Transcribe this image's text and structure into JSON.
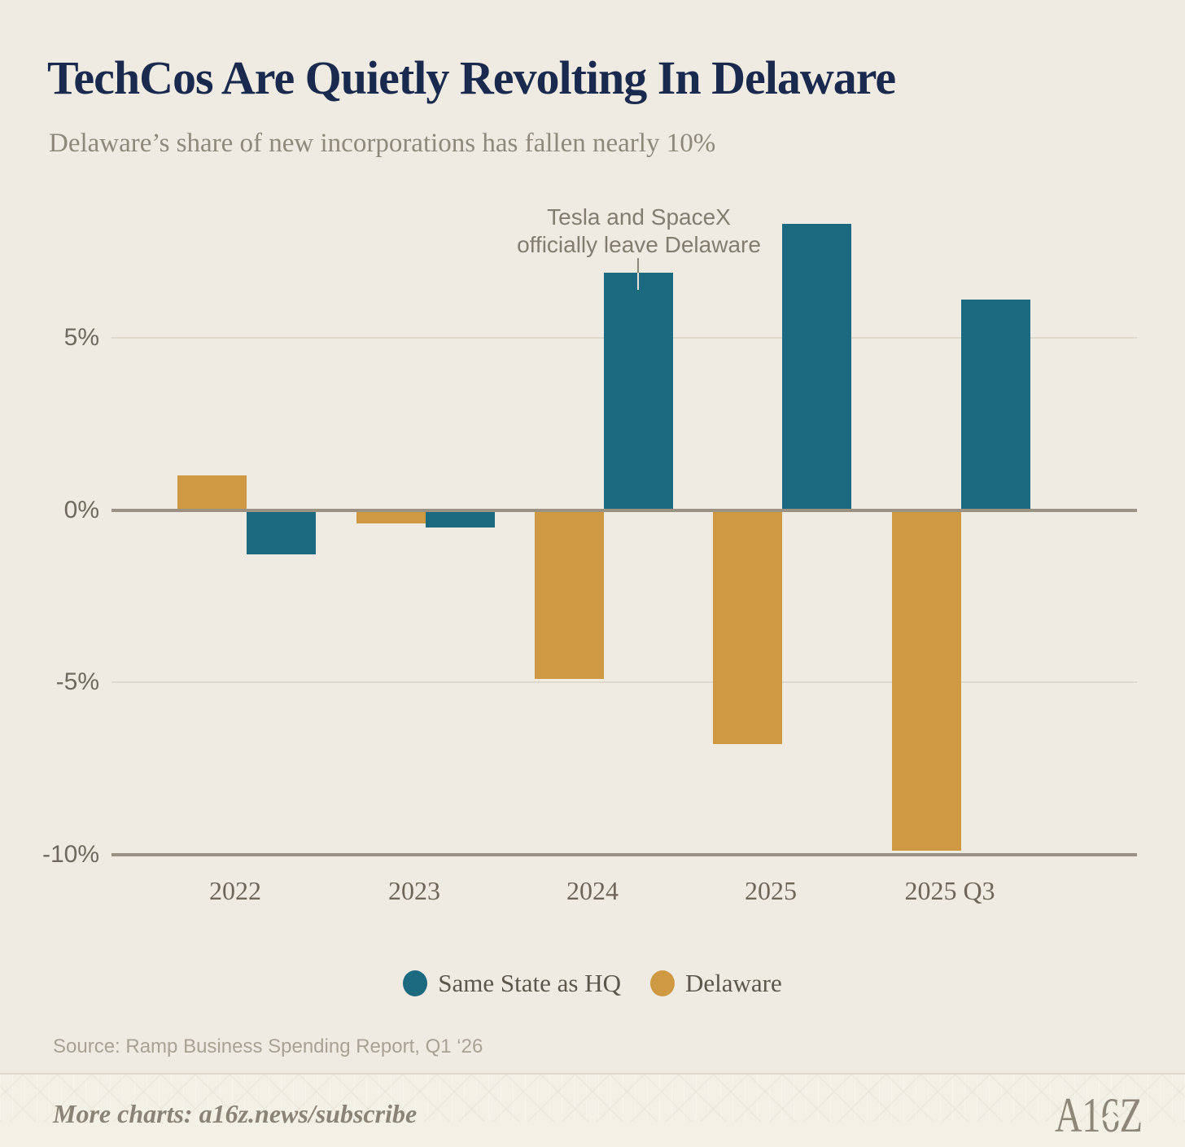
{
  "header": {
    "title": "TechCos Are Quietly Revolting In Delaware",
    "subtitle": "Delaware’s share of new incorporations has fallen nearly 10%"
  },
  "chart_data": {
    "type": "bar",
    "title": "TechCos Are Quietly Revolting In Delaware",
    "subtitle": "Delaware’s share of new incorporations has fallen nearly 10%",
    "categories": [
      "2022",
      "2023",
      "2024",
      "2025",
      "2025 Q3"
    ],
    "series": [
      {
        "name": "Delaware",
        "color": "#CE9942",
        "values": [
          1.0,
          -0.4,
          -4.9,
          -6.8,
          -9.9
        ]
      },
      {
        "name": "Same State as HQ",
        "color": "#1C6A80",
        "values": [
          -1.3,
          -0.5,
          6.9,
          8.3,
          6.1
        ]
      }
    ],
    "xlabel": "",
    "ylabel": "",
    "unit": "%",
    "y_axis": {
      "tick_labels": [
        "5%",
        "0%",
        "-5%",
        "-10%"
      ],
      "tick_values": [
        5,
        0,
        -5,
        -10
      ],
      "major_tick_values": [
        0,
        -10
      ],
      "ylim": [
        -10.5,
        9.4
      ]
    },
    "layout": {
      "grid": "horizontal-only",
      "bar_group_order": [
        "Delaware",
        "Same State as HQ"
      ],
      "legend_position": "bottom"
    },
    "annotation": {
      "line1": "Tesla and SpaceX",
      "line2": "officially leave Delaware",
      "target_category": "2024",
      "target_series": "Same State as HQ"
    }
  },
  "legend": {
    "items": [
      {
        "label": "Same State as HQ",
        "color": "#1C6A80"
      },
      {
        "label": "Delaware",
        "color": "#CE9942"
      }
    ]
  },
  "footer": {
    "source": "Source: Ramp Business Spending Report, Q1 ‘26",
    "more_charts": "More charts: a16z.news/subscribe",
    "logo_text": "A16Z"
  },
  "colors": {
    "background": "#EFEBE2",
    "footer_band": "#F3F0E6",
    "title_text": "#1A2A4E",
    "subtitle_text": "#8F897B",
    "axis_line": "#9C9284",
    "gridline": "#DED9CC",
    "y_tick_text": "#6F695E",
    "x_tick_text": "#6F6659",
    "legend_text": "#5C564B",
    "annotation_text": "#837D70",
    "source_text": "#A9A294",
    "footer_text": "#8B8476"
  }
}
